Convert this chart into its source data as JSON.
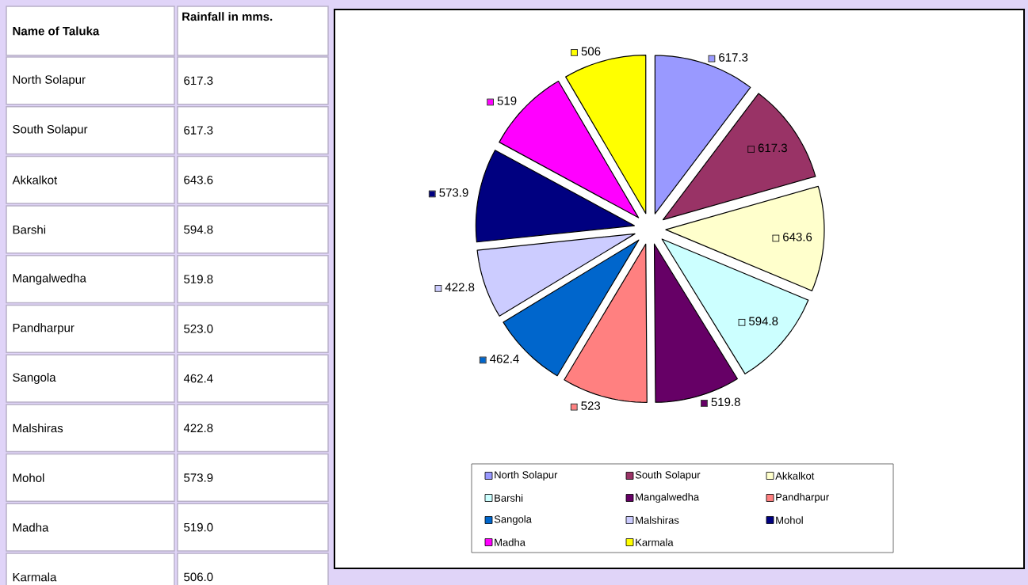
{
  "chart_data": [
    {
      "type": "other",
      "categories": [
        "North Solapur",
        "South Solapur",
        "Akkalkot",
        "Barshi",
        "Mangalwedha",
        "Pandharpur",
        "Sangola",
        "Malshiras",
        "Mohol",
        "Madha",
        "Karmala"
      ],
      "values": [
        617.3,
        617.3,
        643.6,
        594.8,
        519.8,
        523.0,
        462.4,
        422.8,
        573.9,
        519.0,
        506.0
      ],
      "value_labels": [
        "617.3",
        "617.3",
        "643.6",
        "594.8",
        "519.8",
        "523.0",
        "462.4",
        "422.8",
        "573.9",
        "519.0",
        "506.0"
      ],
      "annotations": [
        "Name of Taluka",
        "Rainfall in mms."
      ]
    },
    {
      "type": "pie",
      "categories": [
        "North Solapur",
        "South Solapur",
        "Akkalkot",
        "Barshi",
        "Mangalwedha",
        "Pandharpur",
        "Sangola",
        "Malshiras",
        "Mohol",
        "Madha",
        "Karmala"
      ],
      "values": [
        617.3,
        617.3,
        643.6,
        594.8,
        519.8,
        523.0,
        462.4,
        422.8,
        573.9,
        519.0,
        506.0
      ],
      "value_labels": [
        "617.3",
        "617.3",
        "643.6",
        "594.8",
        "519.8",
        "523",
        "462.4",
        "422.8",
        "573.9",
        "519",
        "506"
      ],
      "colors": [
        "#9999ff",
        "#993366",
        "#ffffcc",
        "#ccffff",
        "#660066",
        "#ff8080",
        "#0066cc",
        "#ccccff",
        "#000080",
        "#ff00ff",
        "#ffff00"
      ],
      "legend": "bottom"
    }
  ]
}
